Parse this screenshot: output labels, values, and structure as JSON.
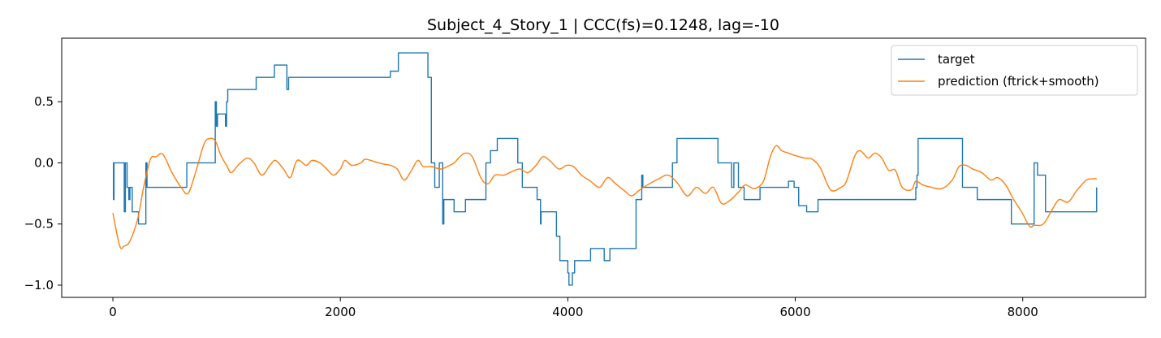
{
  "chart_data": {
    "type": "line",
    "title": "Subject_4_Story_1 | CCC(fs)=0.1248, lag=-10",
    "xlabel": "",
    "ylabel": "",
    "xlim": [
      -450,
      9080
    ],
    "ylim": [
      -1.1,
      1.02
    ],
    "x_ticks": [
      0,
      2000,
      4000,
      6000,
      8000
    ],
    "x_tick_labels": [
      "0",
      "2000",
      "4000",
      "6000",
      "8000"
    ],
    "y_ticks": [
      0.5,
      0.0,
      -0.5,
      -1.0
    ],
    "y_tick_labels": [
      "0.5",
      "0.0",
      "−0.5",
      "−1.0"
    ],
    "grid": false,
    "legend_position": "top-right",
    "colors": {
      "target": "#1f77b4",
      "prediction": "#ff7f0e",
      "axes": "#000000"
    },
    "series": [
      {
        "name": "target",
        "style": "step",
        "points": [
          [
            0,
            0.0
          ],
          [
            5,
            -0.3
          ],
          [
            10,
            0.0
          ],
          [
            100,
            -0.4
          ],
          [
            110,
            0.0
          ],
          [
            125,
            -0.2
          ],
          [
            140,
            -0.3
          ],
          [
            150,
            -0.2
          ],
          [
            170,
            -0.4
          ],
          [
            225,
            -0.5
          ],
          [
            290,
            -0.0
          ],
          [
            300,
            -0.2
          ],
          [
            650,
            0.0
          ],
          [
            900,
            0.5
          ],
          [
            910,
            0.3
          ],
          [
            920,
            0.4
          ],
          [
            990,
            0.3
          ],
          [
            1000,
            0.5
          ],
          [
            1010,
            0.6
          ],
          [
            1260,
            0.7
          ],
          [
            1420,
            0.8
          ],
          [
            1530,
            0.6
          ],
          [
            1545,
            0.7
          ],
          [
            2440,
            0.75
          ],
          [
            2510,
            0.9
          ],
          [
            2770,
            0.7
          ],
          [
            2800,
            0.0
          ],
          [
            2830,
            -0.2
          ],
          [
            2870,
            0.0
          ],
          [
            2900,
            -0.5
          ],
          [
            2910,
            -0.3
          ],
          [
            3000,
            -0.4
          ],
          [
            3100,
            -0.3
          ],
          [
            3130,
            -0.3
          ],
          [
            3280,
            0.0
          ],
          [
            3320,
            0.1
          ],
          [
            3380,
            0.2
          ],
          [
            3560,
            0.0
          ],
          [
            3600,
            -0.2
          ],
          [
            3730,
            -0.3
          ],
          [
            3760,
            -0.5
          ],
          [
            3765,
            -0.4
          ],
          [
            3780,
            -0.4
          ],
          [
            3900,
            -0.6
          ],
          [
            3930,
            -0.8
          ],
          [
            4000,
            -0.9
          ],
          [
            4010,
            -1.0
          ],
          [
            4040,
            -0.9
          ],
          [
            4060,
            -0.8
          ],
          [
            4200,
            -0.7
          ],
          [
            4320,
            -0.8
          ],
          [
            4370,
            -0.7
          ],
          [
            4400,
            -0.7
          ],
          [
            4600,
            -0.3
          ],
          [
            4650,
            -0.1
          ],
          [
            4660,
            -0.2
          ],
          [
            4920,
            0.0
          ],
          [
            4960,
            0.2
          ],
          [
            5320,
            0.0
          ],
          [
            5440,
            -0.2
          ],
          [
            5460,
            0.0
          ],
          [
            5500,
            -0.2
          ],
          [
            5550,
            -0.3
          ],
          [
            5610,
            -0.3
          ],
          [
            5690,
            -0.2
          ],
          [
            5770,
            -0.2
          ],
          [
            5940,
            -0.15
          ],
          [
            5990,
            -0.2
          ],
          [
            6030,
            -0.35
          ],
          [
            6100,
            -0.4
          ],
          [
            6200,
            -0.3
          ],
          [
            6720,
            -0.3
          ],
          [
            7060,
            -0.2
          ],
          [
            7070,
            -0.1
          ],
          [
            7080,
            0.2
          ],
          [
            7430,
            0.2
          ],
          [
            7470,
            -0.2
          ],
          [
            7600,
            -0.3
          ],
          [
            7870,
            -0.3
          ],
          [
            7900,
            -0.5
          ],
          [
            8080,
            -0.5
          ],
          [
            8100,
            0.0
          ],
          [
            8130,
            -0.1
          ],
          [
            8200,
            -0.4
          ],
          [
            8640,
            -0.4
          ],
          [
            8650,
            -0.2
          ]
        ]
      },
      {
        "name": "prediction (ftrick+smooth)",
        "style": "smooth",
        "points": [
          [
            0,
            -0.41
          ],
          [
            60,
            -0.68
          ],
          [
            100,
            -0.68
          ],
          [
            150,
            -0.64
          ],
          [
            220,
            -0.45
          ],
          [
            270,
            -0.2
          ],
          [
            330,
            0.03
          ],
          [
            380,
            0.05
          ],
          [
            440,
            0.07
          ],
          [
            520,
            -0.08
          ],
          [
            600,
            -0.2
          ],
          [
            660,
            -0.25
          ],
          [
            720,
            -0.1
          ],
          [
            800,
            0.15
          ],
          [
            850,
            0.2
          ],
          [
            900,
            0.18
          ],
          [
            950,
            0.06
          ],
          [
            1000,
            -0.02
          ],
          [
            1040,
            -0.08
          ],
          [
            1100,
            -0.02
          ],
          [
            1180,
            0.04
          ],
          [
            1240,
            0.0
          ],
          [
            1310,
            -0.1
          ],
          [
            1380,
            -0.02
          ],
          [
            1430,
            0.02
          ],
          [
            1500,
            -0.05
          ],
          [
            1560,
            -0.12
          ],
          [
            1620,
            0.02
          ],
          [
            1700,
            -0.02
          ],
          [
            1750,
            0.02
          ],
          [
            1820,
            0.0
          ],
          [
            1880,
            -0.05
          ],
          [
            1940,
            -0.1
          ],
          [
            2000,
            -0.05
          ],
          [
            2040,
            0.02
          ],
          [
            2100,
            -0.02
          ],
          [
            2180,
            0.0
          ],
          [
            2220,
            0.03
          ],
          [
            2300,
            0.01
          ],
          [
            2380,
            -0.01
          ],
          [
            2440,
            -0.02
          ],
          [
            2500,
            -0.05
          ],
          [
            2560,
            -0.14
          ],
          [
            2620,
            -0.07
          ],
          [
            2680,
            0.02
          ],
          [
            2730,
            -0.03
          ],
          [
            2800,
            -0.03
          ],
          [
            2880,
            -0.05
          ],
          [
            2940,
            -0.03
          ],
          [
            3000,
            0.0
          ],
          [
            3050,
            0.05
          ],
          [
            3100,
            0.08
          ],
          [
            3160,
            0.05
          ],
          [
            3240,
            -0.13
          ],
          [
            3300,
            -0.17
          ],
          [
            3360,
            -0.1
          ],
          [
            3440,
            -0.1
          ],
          [
            3510,
            -0.07
          ],
          [
            3580,
            -0.05
          ],
          [
            3650,
            -0.08
          ],
          [
            3720,
            -0.02
          ],
          [
            3780,
            0.05
          ],
          [
            3840,
            0.02
          ],
          [
            3920,
            -0.05
          ],
          [
            3990,
            -0.02
          ],
          [
            4050,
            -0.03
          ],
          [
            4120,
            -0.1
          ],
          [
            4200,
            -0.15
          ],
          [
            4280,
            -0.2
          ],
          [
            4350,
            -0.12
          ],
          [
            4420,
            -0.17
          ],
          [
            4500,
            -0.23
          ],
          [
            4560,
            -0.27
          ],
          [
            4620,
            -0.23
          ],
          [
            4700,
            -0.18
          ],
          [
            4800,
            -0.13
          ],
          [
            4880,
            -0.1
          ],
          [
            4960,
            -0.16
          ],
          [
            5050,
            -0.27
          ],
          [
            5130,
            -0.2
          ],
          [
            5210,
            -0.25
          ],
          [
            5280,
            -0.2
          ],
          [
            5350,
            -0.33
          ],
          [
            5420,
            -0.31
          ],
          [
            5500,
            -0.24
          ],
          [
            5560,
            -0.18
          ],
          [
            5640,
            -0.21
          ],
          [
            5720,
            -0.15
          ],
          [
            5780,
            0.05
          ],
          [
            5830,
            0.14
          ],
          [
            5880,
            0.1
          ],
          [
            5940,
            0.08
          ],
          [
            6000,
            0.06
          ],
          [
            6080,
            0.04
          ],
          [
            6150,
            0.03
          ],
          [
            6220,
            -0.04
          ],
          [
            6310,
            -0.22
          ],
          [
            6400,
            -0.2
          ],
          [
            6450,
            -0.15
          ],
          [
            6520,
            0.05
          ],
          [
            6570,
            0.1
          ],
          [
            6640,
            0.04
          ],
          [
            6700,
            0.08
          ],
          [
            6760,
            0.04
          ],
          [
            6820,
            -0.06
          ],
          [
            6880,
            -0.06
          ],
          [
            6940,
            -0.2
          ],
          [
            7020,
            -0.22
          ],
          [
            7060,
            -0.15
          ],
          [
            7120,
            -0.18
          ],
          [
            7200,
            -0.2
          ],
          [
            7290,
            -0.21
          ],
          [
            7380,
            -0.14
          ],
          [
            7440,
            -0.03
          ],
          [
            7500,
            -0.02
          ],
          [
            7560,
            -0.05
          ],
          [
            7640,
            -0.08
          ],
          [
            7720,
            -0.14
          ],
          [
            7780,
            -0.12
          ],
          [
            7850,
            -0.18
          ],
          [
            7920,
            -0.3
          ],
          [
            7990,
            -0.4
          ],
          [
            8060,
            -0.52
          ],
          [
            8100,
            -0.51
          ],
          [
            8180,
            -0.5
          ],
          [
            8260,
            -0.38
          ],
          [
            8320,
            -0.3
          ],
          [
            8400,
            -0.32
          ],
          [
            8480,
            -0.22
          ],
          [
            8560,
            -0.14
          ],
          [
            8620,
            -0.13
          ],
          [
            8650,
            -0.13
          ]
        ]
      }
    ]
  }
}
